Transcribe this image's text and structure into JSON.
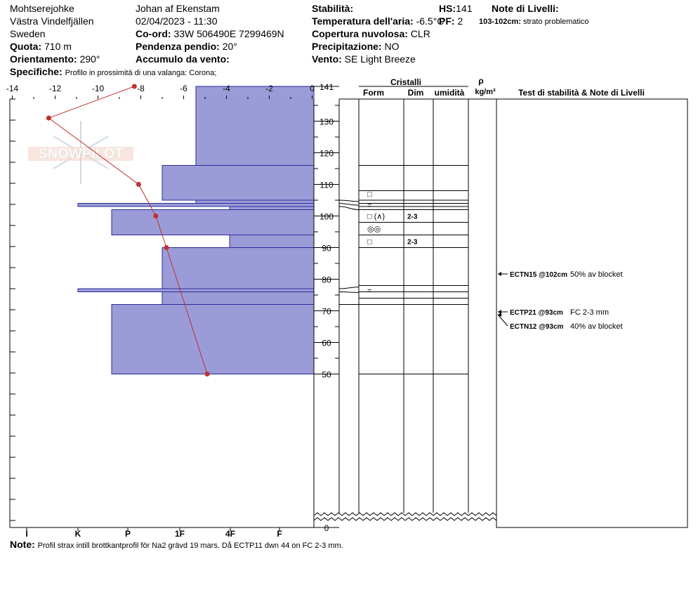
{
  "header": {
    "site": "Mohtserejohke",
    "region": "Västra Vindelfjällen",
    "country": "Sweden",
    "observer": "Johan af Ekenstam",
    "datetime": "02/04/2023 - 11:30",
    "elevation_label": "Quota:",
    "elevation_value": "710 m",
    "aspect_label": "Orientamento:",
    "aspect_value": "290°",
    "coord_label": "Co-ord:",
    "coord_value": "33W 506490E 7299469N",
    "slope_label": "Pendenza pendio:",
    "slope_value": "20°",
    "wind_loading_label": "Accumulo da vento:",
    "specifics_label": "Specifiche:",
    "specifics_value": "Profilo in prossimità di una valanga: Corona;",
    "stability_label": "Stabilità:",
    "air_temp_label": "Temperatura dell'aria:",
    "air_temp_value": "-6.5°C",
    "cloud_label": "Copertura nuvolosa:",
    "cloud_value": "CLR",
    "precip_label": "Precipitazione:",
    "precip_value": "NO",
    "wind_label": "Vento:",
    "wind_value": "SE  Light Breeze",
    "hs_label": "HS:",
    "hs_value": "141",
    "pf_label": "PF:",
    "pf_value": "2",
    "layer_notes_label": "Note di Livelli:",
    "layer_note_depth": "103-102cm:",
    "layer_note_text": "strato problematico"
  },
  "columns": {
    "crystals": "Cristalli",
    "form": "Form",
    "size": "Dim",
    "moisture": "umidità",
    "rho": "ρ",
    "density_unit": "kg/m³",
    "tests": "Test di stabilità & Note di Livelli"
  },
  "note": {
    "label": "Note:",
    "text": "Profil strax intill brottkantprofil för Na2 grävd 19 mars. Då ECTP11 dwn 44 on FC 2-3 mm."
  },
  "watermark": "SNOWPILOT",
  "chart_data": {
    "type": "snow-profile",
    "height_axis": {
      "range": [
        0,
        141
      ],
      "label_ticks": [
        "141",
        "130",
        "120",
        "110",
        "100",
        "90",
        "80",
        "70",
        "60",
        "50",
        "0"
      ]
    },
    "temperature_axis": {
      "range": [
        -14,
        0
      ],
      "ticks": [
        "-14",
        "-12",
        "-10",
        "-8",
        "-6",
        "-4",
        "-2",
        "0"
      ]
    },
    "hardness_axis": {
      "ticks": [
        "I",
        "K",
        "P",
        "1F",
        "4F",
        "F"
      ]
    },
    "temperature_profile": [
      {
        "height": 141,
        "temp": -8.3
      },
      {
        "height": 131,
        "temp": -12.3
      },
      {
        "height": 110,
        "temp": -8.1
      },
      {
        "height": 100,
        "temp": -7.3
      },
      {
        "height": 90,
        "temp": -6.8
      },
      {
        "height": 50,
        "temp": -4.9
      }
    ],
    "layers": [
      {
        "top": 141,
        "bottom": 116,
        "hardness": "4F"
      },
      {
        "top": 116,
        "bottom": 105,
        "hardness": "1F"
      },
      {
        "top": 105,
        "bottom": 104,
        "hardness": "4F"
      },
      {
        "top": 104,
        "bottom": 103,
        "hardness": "K"
      },
      {
        "top": 103,
        "bottom": 102,
        "hardness": "F"
      },
      {
        "top": 102,
        "bottom": 94,
        "hardness": "P"
      },
      {
        "top": 94,
        "bottom": 90,
        "hardness": "F"
      },
      {
        "top": 90,
        "bottom": 77,
        "hardness": "1F"
      },
      {
        "top": 77,
        "bottom": 76,
        "hardness": "K"
      },
      {
        "top": 76,
        "bottom": 72,
        "hardness": "1F"
      },
      {
        "top": 72,
        "bottom": 50,
        "hardness": "P"
      }
    ],
    "grains": [
      {
        "height": 107,
        "form": "□",
        "size": ""
      },
      {
        "height": 103.5,
        "form": "=",
        "size": ""
      },
      {
        "height": 100,
        "form": "□ (∧)",
        "size": "2-3"
      },
      {
        "height": 96,
        "form": "◎◎",
        "size": ""
      },
      {
        "height": 92,
        "form": "□",
        "size": "2-3"
      },
      {
        "height": 76.5,
        "form": "=",
        "size": ""
      }
    ],
    "tests": [
      {
        "code": "ECTN15 @102cm",
        "note": "50% av blocket"
      },
      {
        "code": "ECTP21 @93cm",
        "note": "FC 2-3 mm"
      },
      {
        "code": "ECTN12 @93cm",
        "note": "40% av blocket"
      }
    ]
  }
}
